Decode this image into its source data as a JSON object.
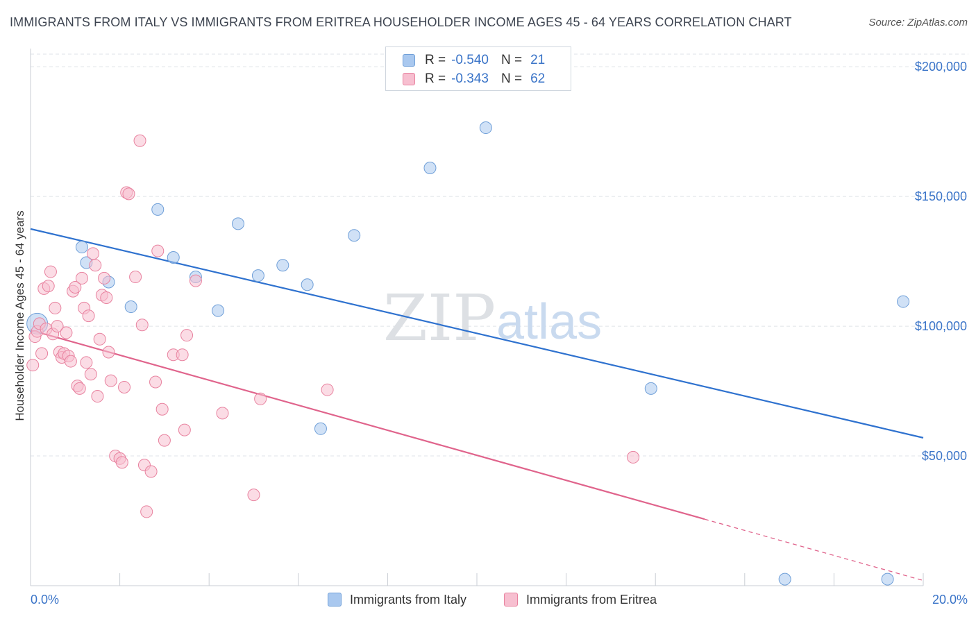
{
  "title": "IMMIGRANTS FROM ITALY VS IMMIGRANTS FROM ERITREA HOUSEHOLDER INCOME AGES 45 - 64 YEARS CORRELATION CHART",
  "source": "Source: ZipAtlas.com",
  "watermark": {
    "zip": "ZIP",
    "atlas": "atlas"
  },
  "legend_top": [
    {
      "r_label": "R =",
      "r_value": "-0.540",
      "n_label": "N =",
      "n_value": "21",
      "color": "#a9c8ef",
      "border": "#6f9fd8"
    },
    {
      "r_label": "R =",
      "r_value": "-0.343",
      "n_label": "N =",
      "n_value": "62",
      "color": "#f7bfd0",
      "border": "#e8829f"
    }
  ],
  "legend_bottom": [
    {
      "label": "Immigrants from Italy",
      "color": "#a9c8ef",
      "border": "#6f9fd8"
    },
    {
      "label": "Immigrants from Eritrea",
      "color": "#f7bfd0",
      "border": "#e8829f"
    }
  ],
  "chart_data": {
    "type": "scatter",
    "title": "IMMIGRANTS FROM ITALY VS IMMIGRANTS FROM ERITREA HOUSEHOLDER INCOME AGES 45 - 64 YEARS CORRELATION CHART",
    "xlabel": "",
    "ylabel": "Householder Income Ages 45 - 64 years",
    "xlim": [
      0,
      20
    ],
    "ylim": [
      0,
      207000
    ],
    "x_tick_labels": [
      "0.0%",
      "20.0%"
    ],
    "y_ticks": [
      50000,
      100000,
      150000,
      200000
    ],
    "y_tick_labels": [
      "$50,000",
      "$100,000",
      "$150,000",
      "$200,000"
    ],
    "grid": true,
    "series": [
      {
        "name": "Immigrants from Italy",
        "color": "#a9c8ef",
        "stroke": "#6f9fd8",
        "line_color": "#2f72cf",
        "trend": {
          "x": [
            0,
            20
          ],
          "y": [
            137500,
            57000
          ],
          "dashed_from": null
        },
        "points": [
          {
            "x": 0.15,
            "y": 101000,
            "big": true
          },
          {
            "x": 1.15,
            "y": 130500
          },
          {
            "x": 1.25,
            "y": 124500
          },
          {
            "x": 1.75,
            "y": 117000
          },
          {
            "x": 2.25,
            "y": 107500
          },
          {
            "x": 2.85,
            "y": 145000
          },
          {
            "x": 3.2,
            "y": 126500
          },
          {
            "x": 3.7,
            "y": 119000
          },
          {
            "x": 4.2,
            "y": 106000
          },
          {
            "x": 4.65,
            "y": 139500
          },
          {
            "x": 5.1,
            "y": 119500
          },
          {
            "x": 5.65,
            "y": 123500
          },
          {
            "x": 6.2,
            "y": 116000
          },
          {
            "x": 6.5,
            "y": 60500
          },
          {
            "x": 7.25,
            "y": 135000
          },
          {
            "x": 8.95,
            "y": 161000
          },
          {
            "x": 10.2,
            "y": 176500
          },
          {
            "x": 13.9,
            "y": 76000
          },
          {
            "x": 16.9,
            "y": 2500
          },
          {
            "x": 19.2,
            "y": 2500
          },
          {
            "x": 19.55,
            "y": 109500
          }
        ]
      },
      {
        "name": "Immigrants from Eritrea",
        "color": "#f7bfd0",
        "stroke": "#e8829f",
        "line_color": "#e0648c",
        "trend": {
          "x": [
            0,
            20
          ],
          "y": [
            98500,
            2000
          ],
          "dashed_from": 15.1
        },
        "points": [
          {
            "x": 0.05,
            "y": 85000
          },
          {
            "x": 0.1,
            "y": 96000
          },
          {
            "x": 0.15,
            "y": 98000
          },
          {
            "x": 0.2,
            "y": 101000
          },
          {
            "x": 0.25,
            "y": 89500
          },
          {
            "x": 0.3,
            "y": 114500
          },
          {
            "x": 0.35,
            "y": 99000
          },
          {
            "x": 0.4,
            "y": 115500
          },
          {
            "x": 0.45,
            "y": 121000
          },
          {
            "x": 0.5,
            "y": 97000
          },
          {
            "x": 0.55,
            "y": 107000
          },
          {
            "x": 0.6,
            "y": 100000
          },
          {
            "x": 0.65,
            "y": 90000
          },
          {
            "x": 0.7,
            "y": 88000
          },
          {
            "x": 0.75,
            "y": 89500
          },
          {
            "x": 0.8,
            "y": 97500
          },
          {
            "x": 0.85,
            "y": 88500
          },
          {
            "x": 0.9,
            "y": 86500
          },
          {
            "x": 0.95,
            "y": 113500
          },
          {
            "x": 1.0,
            "y": 115000
          },
          {
            "x": 1.05,
            "y": 77000
          },
          {
            "x": 1.1,
            "y": 76000
          },
          {
            "x": 1.15,
            "y": 118500
          },
          {
            "x": 1.2,
            "y": 107000
          },
          {
            "x": 1.25,
            "y": 86000
          },
          {
            "x": 1.3,
            "y": 104000
          },
          {
            "x": 1.35,
            "y": 81500
          },
          {
            "x": 1.4,
            "y": 128000
          },
          {
            "x": 1.45,
            "y": 123500
          },
          {
            "x": 1.5,
            "y": 73000
          },
          {
            "x": 1.55,
            "y": 95000
          },
          {
            "x": 1.6,
            "y": 112000
          },
          {
            "x": 1.65,
            "y": 118500
          },
          {
            "x": 1.7,
            "y": 111000
          },
          {
            "x": 1.75,
            "y": 90000
          },
          {
            "x": 1.8,
            "y": 79000
          },
          {
            "x": 1.9,
            "y": 50000
          },
          {
            "x": 2.0,
            "y": 49000
          },
          {
            "x": 2.05,
            "y": 47500
          },
          {
            "x": 2.1,
            "y": 76500
          },
          {
            "x": 2.15,
            "y": 151500
          },
          {
            "x": 2.2,
            "y": 151000
          },
          {
            "x": 2.35,
            "y": 119000
          },
          {
            "x": 2.45,
            "y": 171500
          },
          {
            "x": 2.5,
            "y": 100500
          },
          {
            "x": 2.55,
            "y": 46500
          },
          {
            "x": 2.6,
            "y": 28500
          },
          {
            "x": 2.7,
            "y": 44000
          },
          {
            "x": 2.8,
            "y": 78500
          },
          {
            "x": 2.85,
            "y": 129000
          },
          {
            "x": 2.95,
            "y": 68000
          },
          {
            "x": 3.0,
            "y": 56000
          },
          {
            "x": 3.2,
            "y": 89000
          },
          {
            "x": 3.4,
            "y": 89000
          },
          {
            "x": 3.45,
            "y": 60000
          },
          {
            "x": 3.5,
            "y": 96500
          },
          {
            "x": 3.7,
            "y": 117500
          },
          {
            "x": 4.3,
            "y": 66500
          },
          {
            "x": 5.0,
            "y": 35000
          },
          {
            "x": 5.15,
            "y": 72000
          },
          {
            "x": 6.65,
            "y": 75500
          },
          {
            "x": 13.5,
            "y": 49500
          }
        ]
      }
    ]
  }
}
